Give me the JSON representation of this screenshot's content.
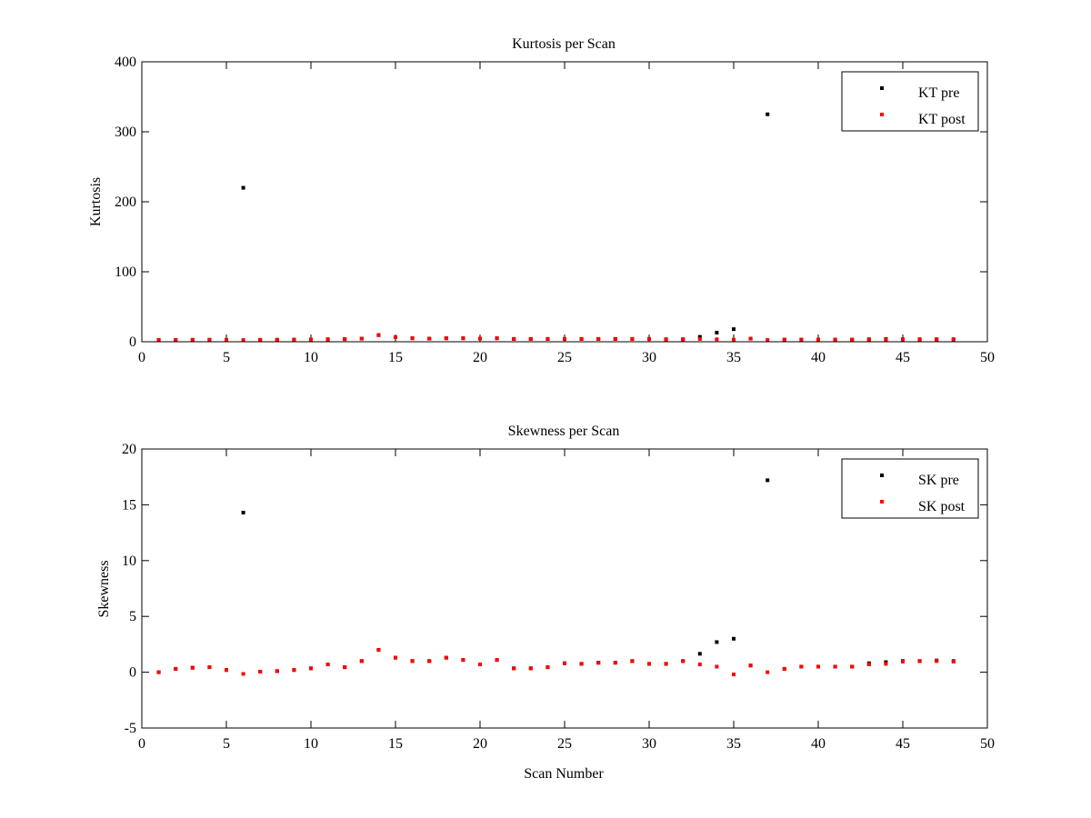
{
  "chart_data": [
    {
      "type": "scatter",
      "title": "Kurtosis per Scan",
      "xlabel": "",
      "ylabel": "Kurtosis",
      "xlim": [
        0,
        50
      ],
      "ylim": [
        0,
        400
      ],
      "xticks": [
        0,
        5,
        10,
        15,
        20,
        25,
        30,
        35,
        40,
        45,
        50
      ],
      "yticks": [
        0,
        100,
        200,
        300,
        400
      ],
      "grid": false,
      "legend": "top-right",
      "series": [
        {
          "name": "KT pre",
          "color": "#000000",
          "x": [
            1,
            2,
            3,
            4,
            5,
            6,
            7,
            8,
            9,
            10,
            11,
            12,
            13,
            14,
            15,
            16,
            17,
            18,
            19,
            20,
            21,
            22,
            23,
            24,
            25,
            26,
            27,
            28,
            29,
            30,
            31,
            32,
            33,
            34,
            35,
            36,
            37,
            38,
            39,
            40,
            41,
            42,
            43,
            44,
            45,
            46,
            47,
            48
          ],
          "y": [
            2.5,
            2.6,
            2.7,
            2.8,
            2.7,
            220,
            2.7,
            2.8,
            3,
            3.2,
            3.5,
            3.8,
            4.5,
            9.5,
            6.5,
            5,
            4.5,
            5,
            5,
            4.5,
            5,
            4,
            4,
            4,
            4,
            4,
            4,
            4,
            4,
            4,
            3.5,
            3.5,
            7,
            13,
            18,
            4.5,
            325,
            3,
            3,
            3,
            3,
            3,
            3.5,
            3.8,
            3.5,
            3.5,
            3.5,
            3.5
          ]
        },
        {
          "name": "KT post",
          "color": "#ff0000",
          "x": [
            1,
            2,
            3,
            4,
            5,
            6,
            7,
            8,
            9,
            10,
            11,
            12,
            13,
            14,
            15,
            16,
            17,
            18,
            19,
            20,
            21,
            22,
            23,
            24,
            25,
            26,
            27,
            28,
            29,
            30,
            31,
            32,
            33,
            34,
            35,
            36,
            37,
            38,
            39,
            40,
            41,
            42,
            43,
            44,
            45,
            46,
            47,
            48
          ],
          "y": [
            2.5,
            2.6,
            2.7,
            2.8,
            2.7,
            2.5,
            2.7,
            2.8,
            3,
            3.2,
            3.5,
            3.8,
            4.5,
            9.5,
            6.5,
            5,
            4.5,
            5,
            5,
            4.5,
            5,
            4,
            4,
            4,
            4,
            4,
            4,
            4,
            4,
            4,
            3.5,
            3.5,
            4,
            3.5,
            3,
            4.5,
            2.5,
            3,
            3,
            3,
            3,
            3,
            3,
            3.2,
            3.5,
            3.5,
            3.5,
            3.5
          ]
        }
      ]
    },
    {
      "type": "scatter",
      "title": "Skewness per Scan",
      "xlabel": "Scan Number",
      "ylabel": "Skewness",
      "xlim": [
        0,
        50
      ],
      "ylim": [
        -5,
        20
      ],
      "xticks": [
        0,
        5,
        10,
        15,
        20,
        25,
        30,
        35,
        40,
        45,
        50
      ],
      "yticks": [
        -5,
        0,
        5,
        10,
        15,
        20
      ],
      "grid": false,
      "legend": "top-right",
      "series": [
        {
          "name": "SK pre",
          "color": "#000000",
          "x": [
            1,
            2,
            3,
            4,
            5,
            6,
            7,
            8,
            9,
            10,
            11,
            12,
            13,
            14,
            15,
            16,
            17,
            18,
            19,
            20,
            21,
            22,
            23,
            24,
            25,
            26,
            27,
            28,
            29,
            30,
            31,
            32,
            33,
            34,
            35,
            36,
            37,
            38,
            39,
            40,
            41,
            42,
            43,
            44,
            45,
            46,
            47,
            48
          ],
          "y": [
            0,
            0.3,
            0.4,
            0.45,
            0.2,
            14.3,
            0.05,
            0.1,
            0.2,
            0.35,
            0.7,
            0.45,
            1,
            2,
            1.3,
            1,
            1,
            1.3,
            1.1,
            0.7,
            1.1,
            0.35,
            0.35,
            0.45,
            0.8,
            0.75,
            0.85,
            0.85,
            1,
            0.75,
            0.75,
            1,
            1.65,
            2.7,
            3,
            0.6,
            17.2,
            0.3,
            0.5,
            0.5,
            0.5,
            0.5,
            0.8,
            0.9,
            1,
            1,
            1.05,
            1
          ]
        },
        {
          "name": "SK post",
          "color": "#ff0000",
          "x": [
            1,
            2,
            3,
            4,
            5,
            6,
            7,
            8,
            9,
            10,
            11,
            12,
            13,
            14,
            15,
            16,
            17,
            18,
            19,
            20,
            21,
            22,
            23,
            24,
            25,
            26,
            27,
            28,
            29,
            30,
            31,
            32,
            33,
            34,
            35,
            36,
            37,
            38,
            39,
            40,
            41,
            42,
            43,
            44,
            45,
            46,
            47,
            48
          ],
          "y": [
            0,
            0.3,
            0.4,
            0.45,
            0.2,
            -0.15,
            0.05,
            0.1,
            0.2,
            0.35,
            0.7,
            0.45,
            1,
            2,
            1.3,
            1,
            1,
            1.3,
            1.1,
            0.7,
            1.1,
            0.35,
            0.35,
            0.45,
            0.8,
            0.75,
            0.85,
            0.85,
            1,
            0.75,
            0.75,
            1,
            0.7,
            0.5,
            -0.2,
            0.6,
            0,
            0.3,
            0.5,
            0.5,
            0.5,
            0.5,
            0.7,
            0.75,
            0.95,
            1,
            1,
            0.95
          ]
        }
      ]
    }
  ]
}
